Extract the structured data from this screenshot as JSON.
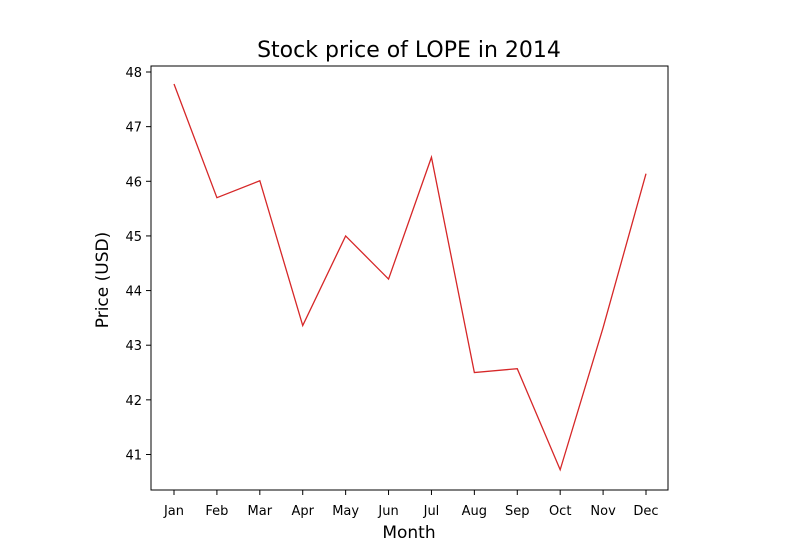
{
  "chart_data": {
    "type": "line",
    "title": "Stock price of LOPE in 2014",
    "xlabel": "Month",
    "ylabel": "Price (USD)",
    "categories": [
      "Jan",
      "Feb",
      "Mar",
      "Apr",
      "May",
      "Jun",
      "Jul",
      "Aug",
      "Sep",
      "Oct",
      "Nov",
      "Dec"
    ],
    "series": [
      {
        "values": [
          47.78,
          45.7,
          46.01,
          43.36,
          45.0,
          44.21,
          46.44,
          42.5,
          42.57,
          40.72,
          43.32,
          46.14
        ],
        "color": "#d62728"
      }
    ],
    "yticks": [
      41,
      42,
      43,
      44,
      45,
      46,
      47,
      48
    ],
    "ylim": [
      40.35,
      48.11
    ],
    "grid": false,
    "legend": "none"
  }
}
